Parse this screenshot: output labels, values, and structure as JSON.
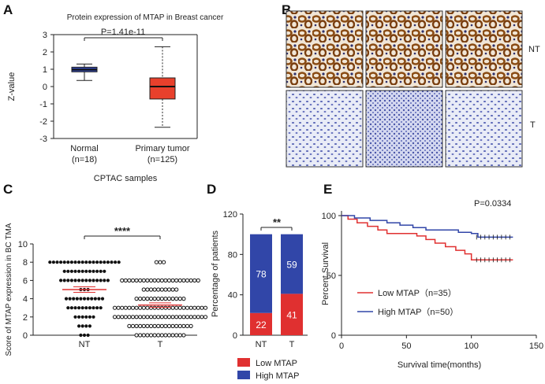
{
  "panels": {
    "a": "A",
    "b": "B",
    "c": "C",
    "d": "D",
    "e": "E"
  },
  "colors": {
    "blue": "#3146a8",
    "red": "#e03030",
    "boxred": "#e8402c",
    "dark": "#222222"
  },
  "chart_data": [
    {
      "panel": "A",
      "type": "box",
      "title": "Protein expression of MTAP in Breast cancer",
      "ylabel": "Z-value",
      "xlabel": "CPTAC samples",
      "ylim": [
        -3,
        3
      ],
      "yticks": [
        "3",
        "2",
        "1",
        "0",
        "-1",
        "-2",
        "-3"
      ],
      "pvalue": "P=1.41e-11",
      "groups": [
        {
          "name": "Normal",
          "n": "(n=18)",
          "min": 0.35,
          "q1": 0.85,
          "median": 0.98,
          "q3": 1.12,
          "max": 1.3
        },
        {
          "name": "Primary tumor",
          "n": "(n=125)",
          "min": -2.35,
          "q1": -0.72,
          "median": 0.0,
          "q3": 0.5,
          "max": 2.3
        }
      ]
    },
    {
      "panel": "B",
      "type": "image-grid",
      "row_labels": [
        "NT",
        "T"
      ]
    },
    {
      "panel": "C",
      "type": "scatter",
      "ylabel": "Score of MTAP expression in BC TMA",
      "ylim": [
        0,
        10
      ],
      "yticks": [
        "10",
        "8",
        "6",
        "4",
        "2",
        "0"
      ],
      "categories": [
        "NT",
        "T"
      ],
      "significance": "****",
      "groups": [
        {
          "name": "NT",
          "mean": 5.0,
          "sem": 0.3,
          "counts": [
            {
              "v": 8,
              "c": 20
            },
            {
              "v": 7,
              "c": 12
            },
            {
              "v": 6,
              "c": 14
            },
            {
              "v": 5,
              "c": 3
            },
            {
              "v": 4,
              "c": 11
            },
            {
              "v": 3,
              "c": 10
            },
            {
              "v": 2,
              "c": 6
            },
            {
              "v": 1,
              "c": 4
            },
            {
              "v": 0,
              "c": 3
            }
          ]
        },
        {
          "name": "T",
          "mean": 3.3,
          "sem": 0.25,
          "counts": [
            {
              "v": 8,
              "c": 3
            },
            {
              "v": 6,
              "c": 22
            },
            {
              "v": 5,
              "c": 10
            },
            {
              "v": 4,
              "c": 14
            },
            {
              "v": 3,
              "c": 26
            },
            {
              "v": 2,
              "c": 26
            },
            {
              "v": 1,
              "c": 18
            },
            {
              "v": 0,
              "c": 14
            }
          ]
        }
      ]
    },
    {
      "panel": "D",
      "type": "stacked-bar",
      "ylabel": "Percentage of patients",
      "ylim": [
        0,
        120
      ],
      "yticks": [
        "120",
        "80",
        "40",
        "0"
      ],
      "categories": [
        "NT",
        "T"
      ],
      "significance": "**",
      "series": [
        {
          "name": "Low MTAP",
          "values": [
            22,
            41
          ]
        },
        {
          "name": "High MTAP",
          "values": [
            78,
            59
          ]
        }
      ]
    },
    {
      "panel": "E",
      "type": "line",
      "ylabel": "Percent Survival",
      "xlabel": "Survival time(months)",
      "xlim": [
        0,
        150
      ],
      "ylim": [
        0,
        100
      ],
      "xticks": [
        "0",
        "50",
        "100",
        "150"
      ],
      "yticks": [
        "100",
        "50",
        "0"
      ],
      "pvalue": "P=0.0334",
      "series": [
        {
          "name": "Low MTAP（n=35）",
          "x": [
            0,
            5,
            12,
            20,
            28,
            35,
            48,
            58,
            65,
            72,
            80,
            88,
            95,
            100,
            132
          ],
          "y": [
            100,
            97,
            94,
            91,
            88,
            85,
            85,
            83,
            80,
            77,
            74,
            71,
            68,
            63,
            63
          ]
        },
        {
          "name": "High MTAP（n=50）",
          "x": [
            0,
            10,
            22,
            35,
            45,
            55,
            65,
            80,
            90,
            100,
            105,
            132
          ],
          "y": [
            100,
            98,
            96,
            94,
            92,
            90,
            88,
            88,
            86,
            85,
            82,
            82
          ]
        }
      ]
    }
  ]
}
